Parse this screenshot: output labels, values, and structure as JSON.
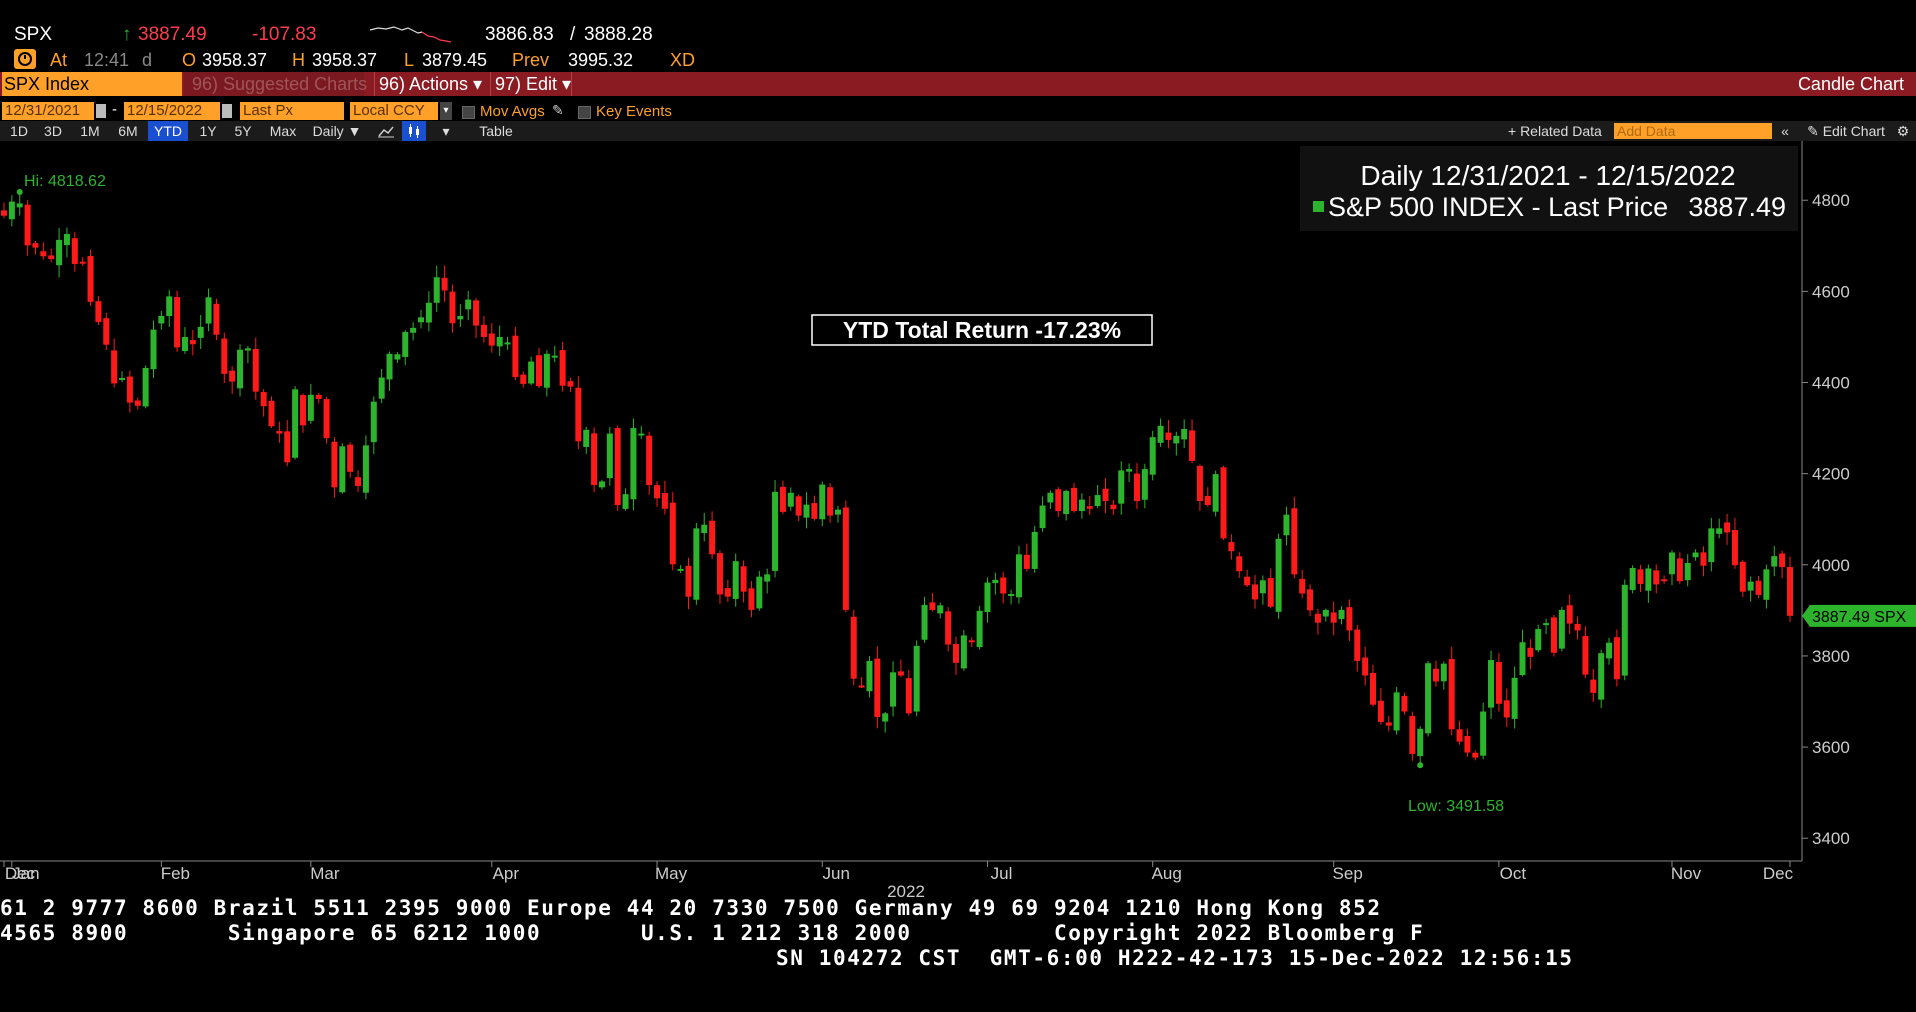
{
  "header": {
    "ticker": "SPX",
    "arrow": "↑",
    "last": "3887.49",
    "change": "-107.83",
    "bid": "3886.83",
    "slash": "/",
    "ask": "3888.28",
    "at_label": "At",
    "time": "12:41",
    "time_flag": "d",
    "open_label": "O",
    "open": "3958.37",
    "high_label": "H",
    "high": "3958.37",
    "low_label": "L",
    "low": "3879.45",
    "prev_label": "Prev",
    "prev": "3995.32",
    "xd": "XD"
  },
  "toolbar": {
    "security": "SPX Index",
    "suggested": "96) Suggested Charts",
    "actions": "96) Actions ▾",
    "edit": "97) Edit ▾",
    "chart_type": "Candle Chart"
  },
  "controls": {
    "start_date": "12/31/2021",
    "dash": "-",
    "end_date": "12/15/2022",
    "field": "Last Px",
    "currency": "Local CCY",
    "mov_avgs": "Mov Avgs",
    "key_events": "Key Events",
    "periods": [
      "1D",
      "3D",
      "1M",
      "6M",
      "YTD",
      "1Y",
      "5Y",
      "Max"
    ],
    "active_period": "YTD",
    "frequency": "Daily ▼",
    "table": "Table",
    "related_data": "+ Related Data",
    "add_data_placeholder": "Add Data",
    "edit_chart": "Edit Chart"
  },
  "chart_data": {
    "type": "candlestick",
    "legend_title": "Daily 12/31/2021 - 12/15/2022",
    "series": [
      {
        "name": "S&P 500 INDEX - Last Price",
        "last_value": "3887.49",
        "color": "#2db42d"
      }
    ],
    "annotation": "YTD Total Return -17.23%",
    "hi_label": "Hi: 4818.62",
    "low_label": "Low: 3491.58",
    "price_tag": "3887.49 SPX",
    "ylim": [
      3350,
      4930
    ],
    "y_ticks": [
      "4800",
      "4600",
      "4400",
      "4200",
      "4000",
      "3800",
      "3600",
      "3400"
    ],
    "y_tick_values": [
      4800,
      4600,
      4400,
      4200,
      4000,
      3800,
      3600,
      3400
    ],
    "x_ticks": [
      "Dec",
      "Jan",
      "Feb",
      "Mar",
      "Apr",
      "May",
      "Jun",
      "Jul",
      "Aug",
      "Sep",
      "Oct",
      "Nov",
      "Dec"
    ],
    "x_year_label": "2022",
    "up_color": "#2db42d",
    "down_color": "#ff1a1a",
    "closes": [
      4766,
      4797,
      4793,
      4701,
      4696,
      4677,
      4671,
      4713,
      4726,
      4660,
      4663,
      4577,
      4533,
      4483,
      4398,
      4410,
      4356,
      4349,
      4432,
      4516,
      4546,
      4589,
      4477,
      4500,
      4484,
      4522,
      4587,
      4505,
      4419,
      4402,
      4472,
      4475,
      4380,
      4348,
      4304,
      4288,
      4225,
      4385,
      4306,
      4373,
      4364,
      4278,
      4170,
      4260,
      4204,
      4173,
      4262,
      4358,
      4411,
      4463,
      4462,
      4511,
      4520,
      4543,
      4575,
      4631,
      4602,
      4530,
      4546,
      4582,
      4525,
      4500,
      4481,
      4500,
      4488,
      4412,
      4397,
      4446,
      4392,
      4463,
      4459,
      4393,
      4391,
      4271,
      4296,
      4175,
      4183,
      4288,
      4131,
      4155,
      4300,
      4288,
      4175,
      4146,
      4123,
      4001,
      3991,
      3930,
      4080,
      4088,
      4023,
      3935,
      3930,
      4008,
      3941,
      3901,
      3974,
      3979,
      4160,
      4116,
      4158,
      4108,
      4132,
      4101,
      4176,
      4108,
      4121,
      3901,
      3750,
      3735,
      3789,
      3666,
      3674,
      3764,
      3757,
      3674,
      3822,
      3912,
      3901,
      3911,
      3825,
      3785,
      3845,
      3831,
      3899,
      3961,
      3967,
      3937,
      3936,
      4023,
      3991,
      4072,
      4130,
      4158,
      4118,
      4162,
      4118,
      4143,
      4123,
      4153,
      4140,
      4122,
      4207,
      4210,
      4140,
      4210,
      4280,
      4305,
      4274,
      4283,
      4298,
      4228,
      4140,
      4131,
      4199,
      4058,
      4030,
      3986,
      3955,
      3924,
      3966,
      3908,
      4057,
      4110,
      3979,
      3937,
      3900,
      3873,
      3901,
      3873,
      3901,
      3856,
      3789,
      3757,
      3693,
      3655,
      3647,
      3720,
      3678,
      3585,
      3640,
      3784,
      3744,
      3783,
      3639,
      3612,
      3588,
      3577,
      3678,
      3791,
      3695,
      3665,
      3752,
      3830,
      3798,
      3859,
      3872,
      3807,
      3901,
      3871,
      3856,
      3759,
      3719,
      3806,
      3829,
      3749,
      3956,
      3993,
      3958,
      3992,
      3957,
      3965,
      4027,
      3964,
      4004,
      4027,
      3998,
      4080,
      4080,
      4071,
      3999,
      3941,
      3963,
      3934,
      3990,
      4019,
      3995,
      3888
    ]
  },
  "ticker_lines": [
    "61 2 9777 8600 Brazil 5511 2395 9000 Europe 44 20 7330 7500 Germany 49 69 9204 1210 Hong Kong 852",
    "4565 8900       Singapore 65 6212 1000       U.S. 1 212 318 2000          Copyright 2022 Bloomberg F",
    "SN 104272 CST  GMT-6:00 H222-42-173 15-Dec-2022 12:56:15"
  ]
}
